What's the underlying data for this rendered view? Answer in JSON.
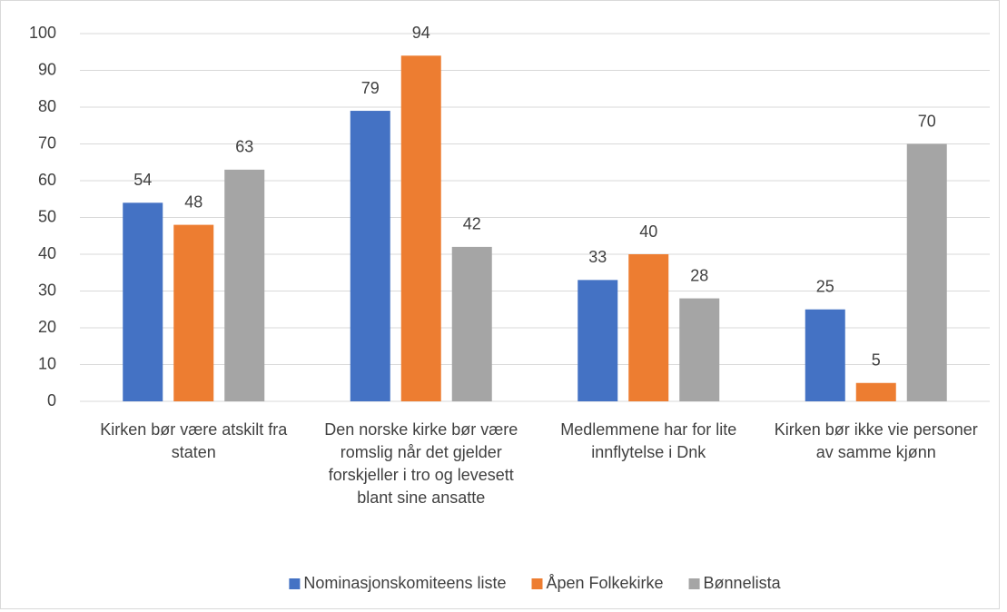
{
  "chart_data": {
    "type": "bar",
    "categories": [
      "Kirken bør være atskilt fra staten",
      "Den norske kirke bør være romslig når det gjelder forskjeller i tro og levesett blant sine ansatte",
      "Medlemmene har for lite innflytelse i Dnk",
      "Kirken bør ikke vie personer av samme kjønn"
    ],
    "series": [
      {
        "name": "Nominasjonskomiteens liste",
        "color": "#4472c4",
        "values": [
          54,
          79,
          33,
          25
        ]
      },
      {
        "name": "Åpen Folkekirke",
        "color": "#ed7d31",
        "values": [
          48,
          94,
          40,
          5
        ]
      },
      {
        "name": "Bønnelista",
        "color": "#a5a5a5",
        "values": [
          63,
          42,
          28,
          70
        ]
      }
    ],
    "ylim": [
      0,
      100
    ],
    "yticks": [
      0,
      10,
      20,
      30,
      40,
      50,
      60,
      70,
      80,
      90,
      100
    ],
    "grid": true,
    "legend": "bottom"
  }
}
